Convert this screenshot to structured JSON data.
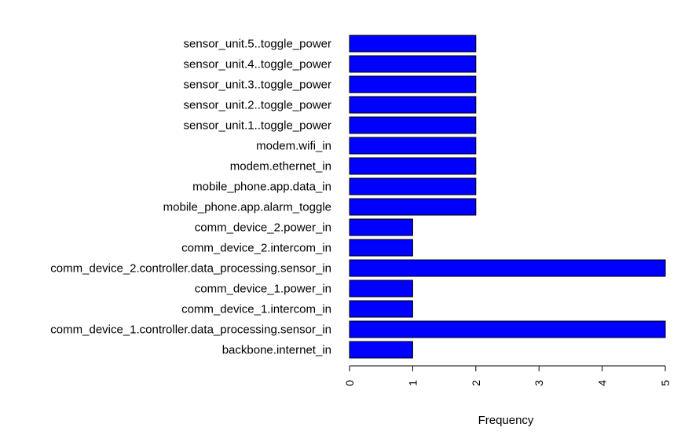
{
  "chart_data": {
    "type": "bar",
    "orientation": "horizontal",
    "categories": [
      "sensor_unit.5..toggle_power",
      "sensor_unit.4..toggle_power",
      "sensor_unit.3..toggle_power",
      "sensor_unit.2..toggle_power",
      "sensor_unit.1..toggle_power",
      "modem.wifi_in",
      "modem.ethernet_in",
      "mobile_phone.app.data_in",
      "mobile_phone.app.alarm_toggle",
      "comm_device_2.power_in",
      "comm_device_2.intercom_in",
      "comm_device_2.controller.data_processing.sensor_in",
      "comm_device_1.power_in",
      "comm_device_1.intercom_in",
      "comm_device_1.controller.data_processing.sensor_in",
      "backbone.internet_in"
    ],
    "values": [
      2,
      2,
      2,
      2,
      2,
      2,
      2,
      2,
      2,
      1,
      1,
      5,
      1,
      1,
      5,
      1
    ],
    "xlabel": "Frequency",
    "ylabel": "",
    "xlim": [
      0,
      5
    ],
    "xticks": [
      "0",
      "1",
      "2",
      "3",
      "4",
      "5"
    ],
    "bar_color": "#0000ff",
    "bar_border": "#000000",
    "grid": false
  }
}
